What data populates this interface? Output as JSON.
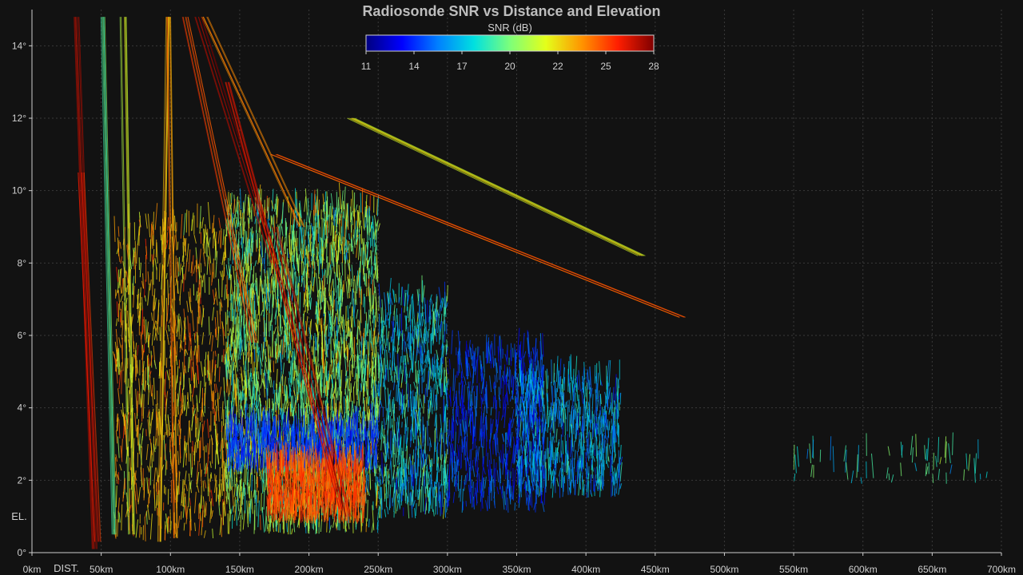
{
  "chart_data": {
    "type": "scatter",
    "title": "Radiosonde SNR vs Distance and Elevation",
    "xlabel": "DIST.",
    "ylabel": "EL.",
    "xlim": [
      0,
      700
    ],
    "ylim": [
      0,
      15
    ],
    "x_ticks": [
      {
        "value": 0,
        "label": "0km"
      },
      {
        "value": 50,
        "label": "50km"
      },
      {
        "value": 100,
        "label": "100km"
      },
      {
        "value": 150,
        "label": "150km"
      },
      {
        "value": 200,
        "label": "200km"
      },
      {
        "value": 250,
        "label": "250km"
      },
      {
        "value": 300,
        "label": "300km"
      },
      {
        "value": 350,
        "label": "350km"
      },
      {
        "value": 400,
        "label": "400km"
      },
      {
        "value": 450,
        "label": "450km"
      },
      {
        "value": 500,
        "label": "500km"
      },
      {
        "value": 550,
        "label": "550km"
      },
      {
        "value": 600,
        "label": "600km"
      },
      {
        "value": 650,
        "label": "650km"
      },
      {
        "value": 700,
        "label": "700km"
      }
    ],
    "y_ticks": [
      {
        "value": 0,
        "label": "0°"
      },
      {
        "value": 2,
        "label": "2°"
      },
      {
        "value": 4,
        "label": "4°"
      },
      {
        "value": 6,
        "label": "6°"
      },
      {
        "value": 8,
        "label": "8°"
      },
      {
        "value": 10,
        "label": "10°"
      },
      {
        "value": 12,
        "label": "12°"
      },
      {
        "value": 14,
        "label": "14°"
      }
    ],
    "grid": true,
    "colorbar": {
      "title": "SNR (dB)",
      "position": "top-center",
      "range": [
        11,
        28
      ],
      "ticks": [
        "11",
        "14",
        "17",
        "20",
        "22",
        "25",
        "28"
      ],
      "colormap": [
        "#00007f",
        "#0000ff",
        "#0080ff",
        "#00e0e0",
        "#7dff7a",
        "#e4ff1a",
        "#ff9400",
        "#ff1e00",
        "#7f0000"
      ]
    },
    "tracks": [
      {
        "x0": 45,
        "y0": 0.1,
        "x1": 32,
        "y1": 14.8,
        "snr": 27
      },
      {
        "x0": 48,
        "y0": 0.3,
        "x1": 36,
        "y1": 10.5,
        "snr": 26
      },
      {
        "x0": 60,
        "y0": 0.5,
        "x1": 52,
        "y1": 14.8,
        "snr": 19
      },
      {
        "x0": 72,
        "y0": 0.5,
        "x1": 66,
        "y1": 14.8,
        "snr": 21
      },
      {
        "x0": 92,
        "y0": 0.3,
        "x1": 98,
        "y1": 14.8,
        "snr": 23
      },
      {
        "x0": 105,
        "y0": 0.4,
        "x1": 100,
        "y1": 14.8,
        "snr": 24
      },
      {
        "x0": 160,
        "y0": 5.8,
        "x1": 110,
        "y1": 14.8,
        "snr": 25
      },
      {
        "x0": 175,
        "y0": 8.0,
        "x1": 120,
        "y1": 14.8,
        "snr": 27
      },
      {
        "x0": 195,
        "y0": 9.0,
        "x1": 125,
        "y1": 14.8,
        "snr": 24
      },
      {
        "x0": 228,
        "y0": 1.0,
        "x1": 175,
        "y1": 9.0,
        "snr": 27
      },
      {
        "x0": 222,
        "y0": 1.2,
        "x1": 140,
        "y1": 13.0,
        "snr": 26
      },
      {
        "x0": 470,
        "y0": 6.5,
        "x1": 175,
        "y1": 11.0,
        "snr": 25
      },
      {
        "x0": 440,
        "y0": 8.2,
        "x1": 230,
        "y1": 12.0,
        "snr": 22
      }
    ],
    "clusters": [
      {
        "xmin": 60,
        "xmax": 140,
        "ymin": 0.3,
        "ymax": 9.0,
        "snr_mean": 23,
        "snr_spread": 4,
        "count": 900
      },
      {
        "xmin": 140,
        "xmax": 250,
        "ymin": 0.5,
        "ymax": 9.5,
        "snr_mean": 20,
        "snr_spread": 6,
        "count": 2600
      },
      {
        "xmin": 140,
        "xmax": 250,
        "ymin": 2.2,
        "ymax": 3.4,
        "snr_mean": 14,
        "snr_spread": 2,
        "count": 700
      },
      {
        "xmin": 170,
        "xmax": 240,
        "ymin": 0.8,
        "ymax": 2.4,
        "snr_mean": 25,
        "snr_spread": 2,
        "count": 900
      },
      {
        "xmin": 250,
        "xmax": 300,
        "ymin": 0.9,
        "ymax": 7.0,
        "snr_mean": 17,
        "snr_spread": 5,
        "count": 700
      },
      {
        "xmin": 300,
        "xmax": 370,
        "ymin": 1.1,
        "ymax": 5.5,
        "snr_mean": 14,
        "snr_spread": 3,
        "count": 600
      },
      {
        "xmin": 350,
        "xmax": 425,
        "ymin": 1.5,
        "ymax": 4.8,
        "snr_mean": 16,
        "snr_spread": 4,
        "count": 650
      },
      {
        "xmin": 550,
        "xmax": 690,
        "ymin": 1.9,
        "ymax": 2.7,
        "snr_mean": 18,
        "snr_spread": 4,
        "count": 60
      }
    ]
  }
}
